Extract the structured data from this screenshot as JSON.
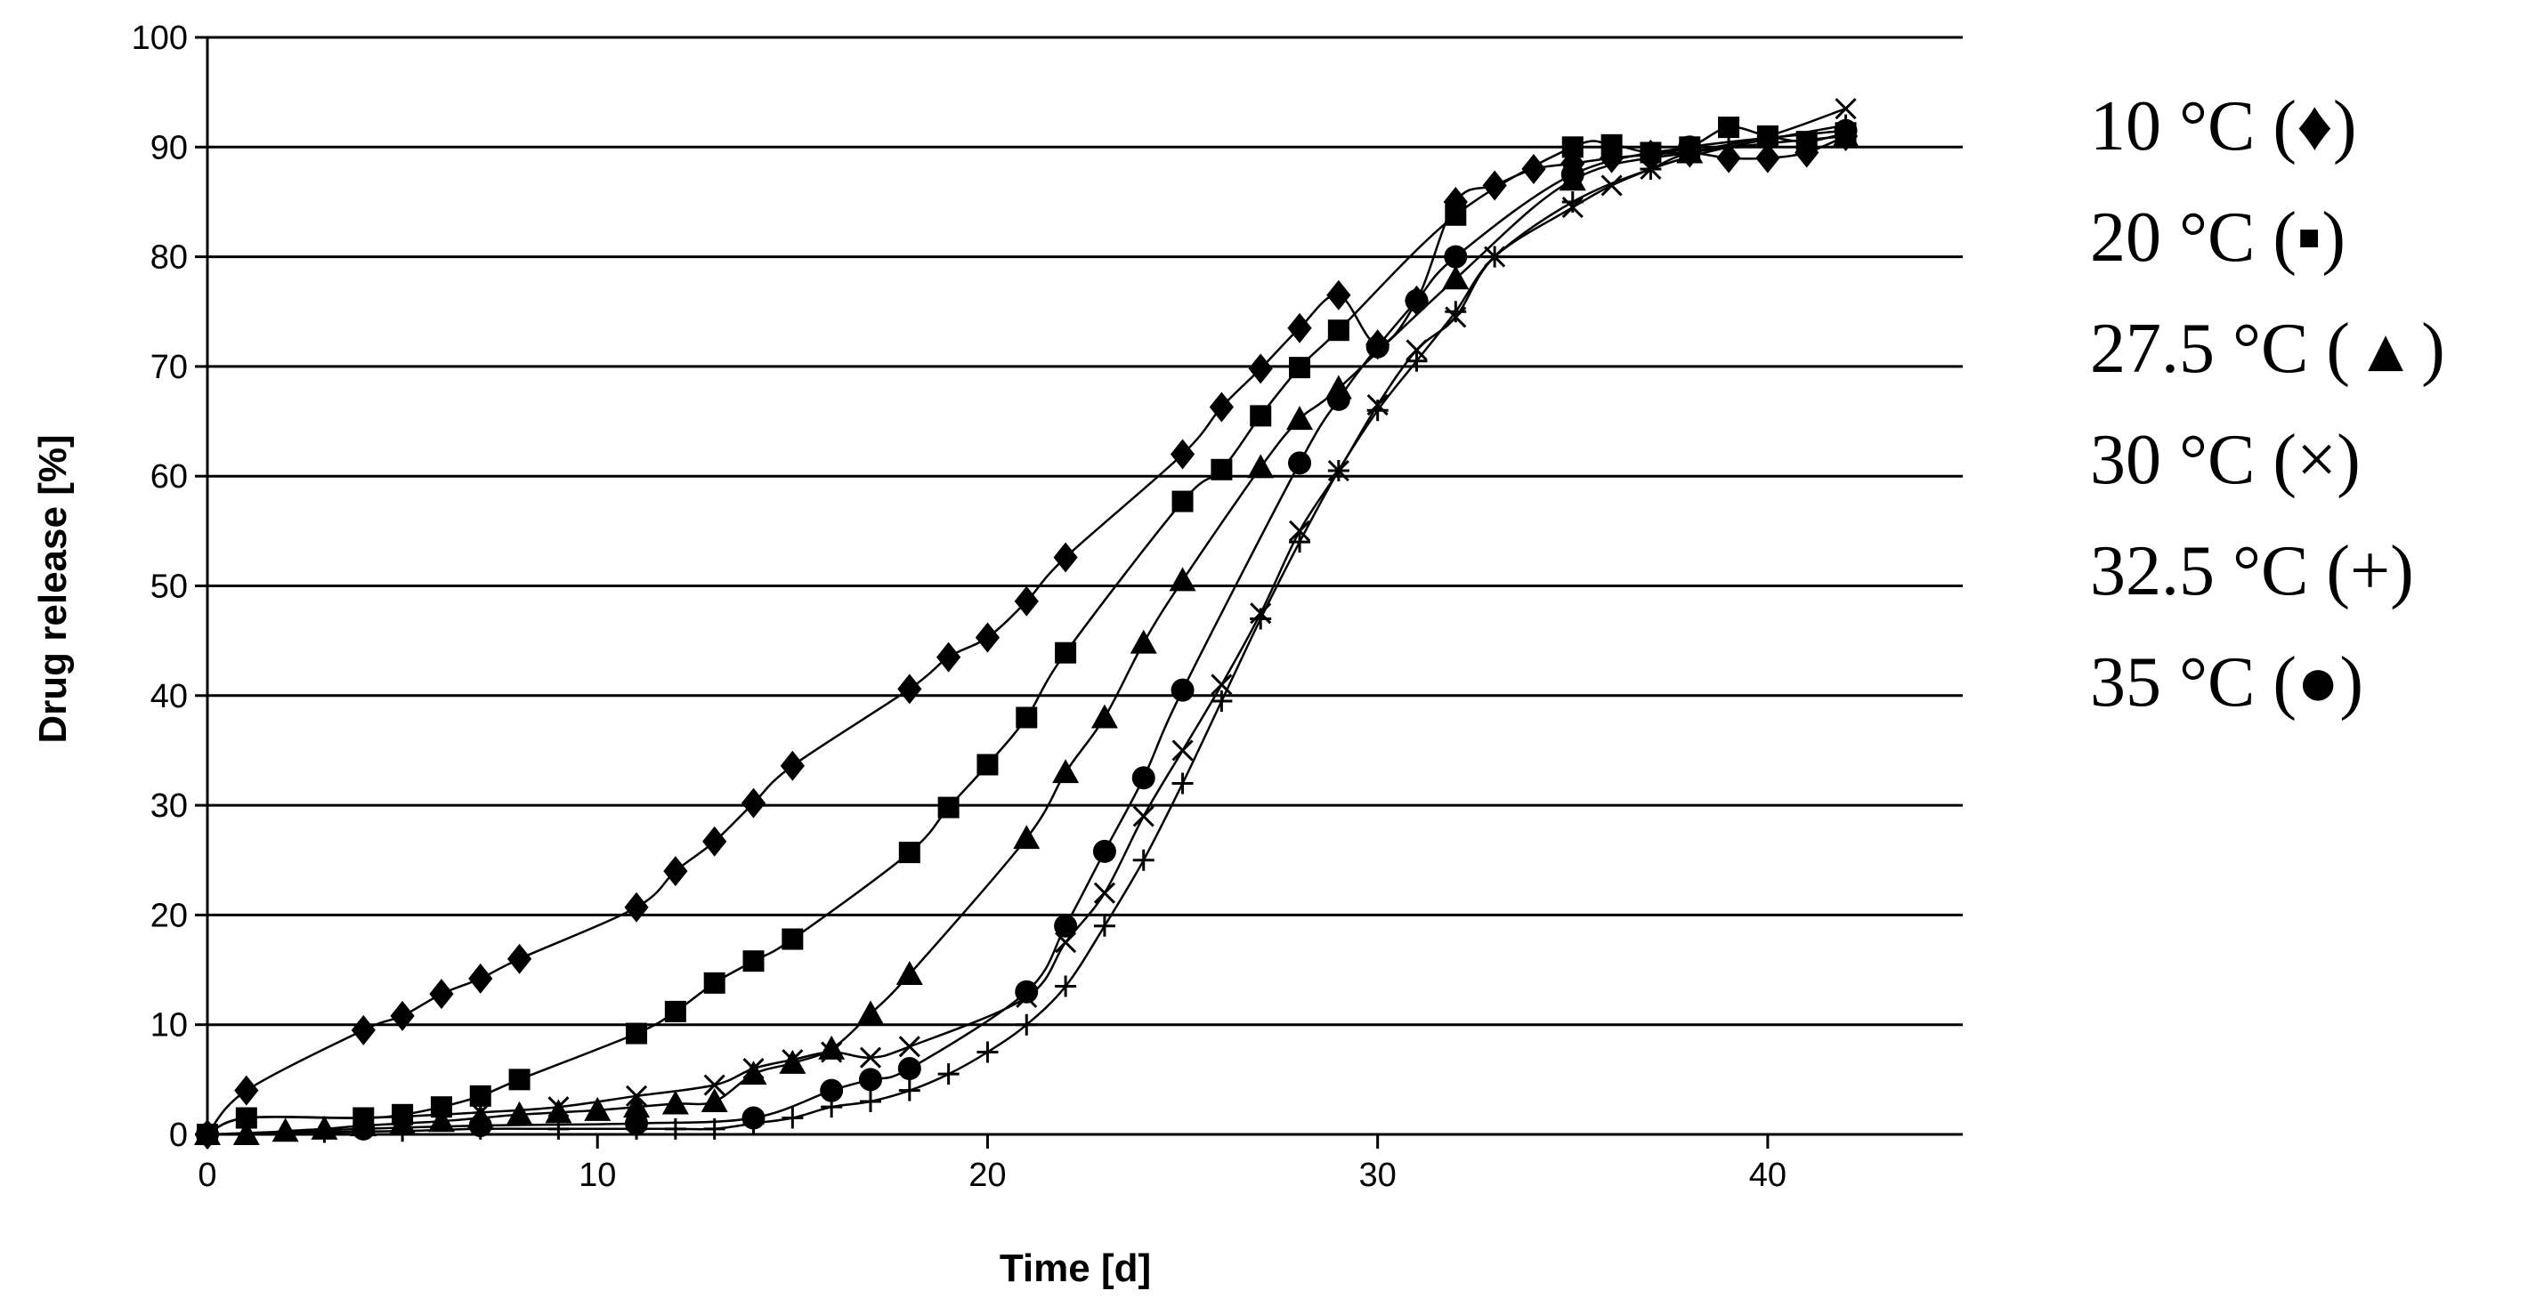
{
  "chart_data": {
    "type": "line",
    "title": "",
    "xlabel": "Time [d]",
    "ylabel": "Drug release [%]",
    "xlim": [
      0,
      45
    ],
    "ylim": [
      0,
      100
    ],
    "x_ticks": [
      0,
      10,
      20,
      30,
      40
    ],
    "y_ticks": [
      0,
      10,
      20,
      30,
      40,
      50,
      60,
      70,
      80,
      90,
      100
    ],
    "grid": "horizontal",
    "legend_position": "right",
    "series": [
      {
        "name": "10 °C",
        "legend_label": "10 °C (♦)",
        "marker": "diamond",
        "points": [
          [
            0,
            0
          ],
          [
            1,
            4
          ],
          [
            4,
            9.5
          ],
          [
            5,
            10.8
          ],
          [
            6,
            12.8
          ],
          [
            7,
            14.2
          ],
          [
            8,
            16
          ],
          [
            11,
            20.7
          ],
          [
            12,
            24
          ],
          [
            13,
            26.7
          ],
          [
            14,
            30.2
          ],
          [
            15,
            33.6
          ],
          [
            18,
            40.6
          ],
          [
            19,
            43.5
          ],
          [
            20,
            45.3
          ],
          [
            21,
            48.6
          ],
          [
            22,
            52.6
          ],
          [
            25,
            62
          ],
          [
            26,
            66.3
          ],
          [
            27,
            69.8
          ],
          [
            28,
            73.5
          ],
          [
            29,
            76.5
          ],
          [
            30,
            72
          ],
          [
            31,
            76
          ],
          [
            32,
            85
          ],
          [
            33,
            86.5
          ],
          [
            34,
            88
          ],
          [
            35,
            88.5
          ],
          [
            36,
            89
          ],
          [
            37,
            89.3
          ],
          [
            38,
            89.5
          ],
          [
            39,
            89
          ],
          [
            40,
            89
          ],
          [
            41,
            89.5
          ],
          [
            42,
            91
          ]
        ]
      },
      {
        "name": "20 °C",
        "legend_label": "20 °C (▪)",
        "marker": "square",
        "points": [
          [
            0,
            0
          ],
          [
            1,
            1.5
          ],
          [
            4,
            1.5
          ],
          [
            5,
            1.8
          ],
          [
            6,
            2.5
          ],
          [
            7,
            3.5
          ],
          [
            8,
            5
          ],
          [
            11,
            9.2
          ],
          [
            12,
            11.2
          ],
          [
            13,
            13.8
          ],
          [
            14,
            15.8
          ],
          [
            15,
            17.8
          ],
          [
            18,
            25.7
          ],
          [
            19,
            29.8
          ],
          [
            20,
            33.7
          ],
          [
            21,
            38
          ],
          [
            22,
            43.9
          ],
          [
            25,
            57.7
          ],
          [
            26,
            60.6
          ],
          [
            27,
            65.5
          ],
          [
            28,
            69.9
          ],
          [
            29,
            73.3
          ],
          [
            32,
            83.8
          ],
          [
            35,
            90
          ],
          [
            36,
            90.2
          ],
          [
            37,
            89.5
          ],
          [
            38,
            90
          ],
          [
            39,
            91.8
          ],
          [
            40,
            91
          ],
          [
            41,
            90.5
          ],
          [
            42,
            91.3
          ]
        ]
      },
      {
        "name": "27.5 °C",
        "legend_label": "27.5 °C ( ▴ )",
        "marker": "triangle",
        "points": [
          [
            0,
            0
          ],
          [
            1,
            0
          ],
          [
            2,
            0.3
          ],
          [
            3,
            0.5
          ],
          [
            4,
            0.8
          ],
          [
            5,
            1
          ],
          [
            6,
            1.2
          ],
          [
            7,
            1.5
          ],
          [
            8,
            1.8
          ],
          [
            9,
            2
          ],
          [
            10,
            2.2
          ],
          [
            11,
            2.5
          ],
          [
            12,
            2.8
          ],
          [
            13,
            3
          ],
          [
            14,
            5.5
          ],
          [
            15,
            6.5
          ],
          [
            16,
            7.8
          ],
          [
            17,
            11
          ],
          [
            18,
            14.6
          ],
          [
            21,
            27
          ],
          [
            22,
            33
          ],
          [
            23,
            38
          ],
          [
            24,
            44.8
          ],
          [
            25,
            50.5
          ],
          [
            27,
            60.8
          ],
          [
            28,
            65.2
          ],
          [
            29,
            68
          ],
          [
            32,
            78
          ],
          [
            35,
            87
          ],
          [
            38,
            89.5
          ],
          [
            42,
            91
          ]
        ]
      },
      {
        "name": "30 °C",
        "legend_label": "30 °C (×)",
        "marker": "x",
        "points": [
          [
            0,
            0
          ],
          [
            1,
            1.5
          ],
          [
            4,
            1.5
          ],
          [
            7,
            2
          ],
          [
            9,
            2.5
          ],
          [
            11,
            3.5
          ],
          [
            13,
            4.5
          ],
          [
            14,
            6
          ],
          [
            15,
            6.8
          ],
          [
            16,
            7.5
          ],
          [
            17,
            7
          ],
          [
            18,
            8
          ],
          [
            21,
            12.5
          ],
          [
            22,
            17.5
          ],
          [
            23,
            22
          ],
          [
            24,
            29
          ],
          [
            25,
            35
          ],
          [
            26,
            41
          ],
          [
            27,
            47.5
          ],
          [
            28,
            55
          ],
          [
            29,
            60.5
          ],
          [
            30,
            66.5
          ],
          [
            31,
            71.5
          ],
          [
            32,
            74.5
          ],
          [
            33,
            80
          ],
          [
            35,
            84.5
          ],
          [
            36,
            86.5
          ],
          [
            37,
            88
          ],
          [
            38,
            89.5
          ],
          [
            40,
            91
          ],
          [
            42,
            93.5
          ]
        ]
      },
      {
        "name": "32.5 °C",
        "legend_label": "32.5 °C (+)",
        "marker": "plus",
        "points": [
          [
            0,
            0
          ],
          [
            1,
            0
          ],
          [
            3,
            0.2
          ],
          [
            5,
            0.3
          ],
          [
            7,
            0.5
          ],
          [
            9,
            0.5
          ],
          [
            11,
            0.5
          ],
          [
            12,
            0.5
          ],
          [
            13,
            0.5
          ],
          [
            14,
            1
          ],
          [
            15,
            1.5
          ],
          [
            16,
            2.5
          ],
          [
            17,
            3
          ],
          [
            18,
            4
          ],
          [
            19,
            5.5
          ],
          [
            20,
            7.5
          ],
          [
            21,
            10
          ],
          [
            22,
            13.5
          ],
          [
            23,
            19
          ],
          [
            24,
            25
          ],
          [
            25,
            32
          ],
          [
            26,
            39.5
          ],
          [
            27,
            47
          ],
          [
            28,
            54
          ],
          [
            29,
            60.5
          ],
          [
            30,
            66
          ],
          [
            31,
            70.5
          ],
          [
            32,
            75
          ],
          [
            33,
            80
          ],
          [
            35,
            85
          ],
          [
            37,
            88
          ],
          [
            39,
            90
          ],
          [
            42,
            92
          ]
        ]
      },
      {
        "name": "35 °C",
        "legend_label": "35 °C (●)",
        "marker": "circle",
        "points": [
          [
            0,
            0
          ],
          [
            4,
            0.5
          ],
          [
            7,
            0.8
          ],
          [
            11,
            1
          ],
          [
            14,
            1.5
          ],
          [
            16,
            4
          ],
          [
            17,
            5
          ],
          [
            18,
            6
          ],
          [
            21,
            13
          ],
          [
            22,
            19
          ],
          [
            23,
            25.8
          ],
          [
            24,
            32.5
          ],
          [
            25,
            40.5
          ],
          [
            28,
            61.2
          ],
          [
            29,
            67
          ],
          [
            30,
            71.8
          ],
          [
            31,
            76
          ],
          [
            32,
            80
          ],
          [
            35,
            87.5
          ],
          [
            38,
            90
          ],
          [
            42,
            91.5
          ]
        ]
      }
    ]
  }
}
